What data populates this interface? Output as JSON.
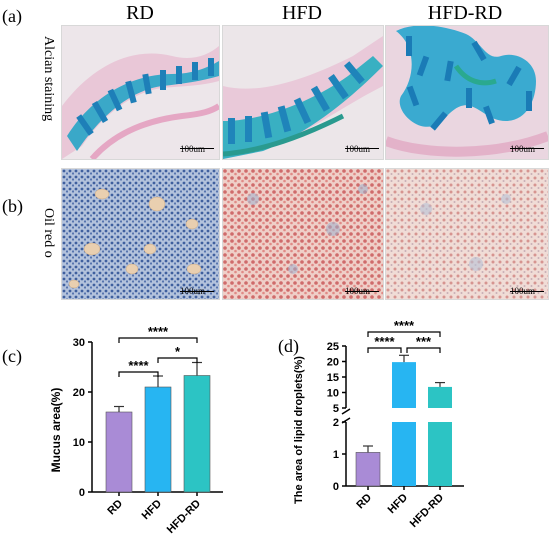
{
  "figure": {
    "panel_letters": [
      "(a)",
      "(b)",
      "(c)",
      "(d)"
    ],
    "column_headers": [
      "RD",
      "HFD",
      "HFD-RD"
    ],
    "row_labels": [
      "Alcian staining",
      "Oil red o"
    ],
    "scale_bar_label": "100um"
  },
  "chart_data": [
    {
      "type": "bar",
      "panel": "(c)",
      "categories": [
        "RD",
        "HFD",
        "HFD-RD"
      ],
      "values": [
        16,
        21,
        23.3
      ],
      "errors": [
        1.1,
        2.2,
        2.6
      ],
      "colors": [
        "#a98bd6",
        "#27b5f2",
        "#2cc4c4"
      ],
      "ylabel": "Mucus area(%)",
      "ylim": [
        0,
        30
      ],
      "yticks": [
        0,
        10,
        20,
        30
      ],
      "significance": [
        {
          "from": "RD",
          "to": "HFD-RD",
          "label": "****"
        },
        {
          "from": "RD",
          "to": "HFD",
          "label": "****"
        },
        {
          "from": "HFD",
          "to": "HFD-RD",
          "label": "*"
        }
      ]
    },
    {
      "type": "bar",
      "panel": "(d)",
      "categories": [
        "RD",
        "HFD",
        "HFD-RD"
      ],
      "values": [
        1.05,
        19.8,
        11.8
      ],
      "errors": [
        0.2,
        2.2,
        1.4
      ],
      "colors": [
        "#a98bd6",
        "#27b5f2",
        "#2cc4c4"
      ],
      "ylabel": "The area of lipid droplets(%)",
      "broken_axis": true,
      "yticks_lower": [
        0,
        1,
        2
      ],
      "yticks_upper": [
        5,
        10,
        15,
        20,
        25
      ],
      "significance": [
        {
          "from": "RD",
          "to": "HFD-RD",
          "label": "****"
        },
        {
          "from": "RD",
          "to": "HFD",
          "label": "****"
        },
        {
          "from": "HFD",
          "to": "HFD-RD",
          "label": "***"
        }
      ]
    }
  ]
}
